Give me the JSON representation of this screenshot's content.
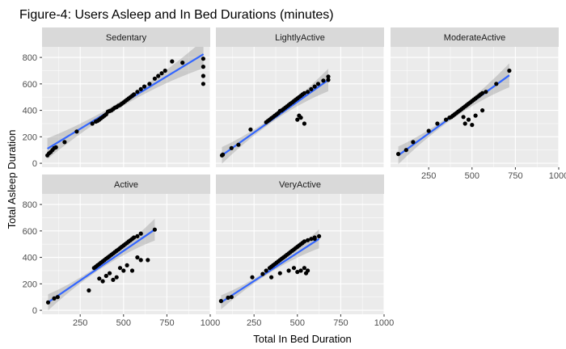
{
  "chart_data": {
    "type": "scatter",
    "title": "Figure-4: Users Asleep and In Bed Durations (minutes)",
    "xlabel": "Total In Bed Duration",
    "ylabel": "Total Asleep Duration",
    "xlim": [
      30,
      1000
    ],
    "ylim": [
      -30,
      880
    ],
    "x_ticks": [
      250,
      500,
      750,
      1000
    ],
    "y_ticks": [
      0,
      200,
      400,
      600,
      800
    ],
    "grid": true,
    "smooth": "linear fit with confidence band",
    "colors": {
      "panel_bg": "#ebebeb",
      "strip_bg": "#d9d9d9",
      "grid": "#ffffff",
      "points": "#000000",
      "fit_line": "#3366ff",
      "band": "#999999"
    },
    "panels": [
      {
        "name": "Sedentary",
        "fit": {
          "x": [
            61,
            961
          ],
          "y": [
            110,
            825
          ]
        },
        "points": [
          [
            61,
            60
          ],
          [
            70,
            75
          ],
          [
            80,
            85
          ],
          [
            90,
            100
          ],
          [
            100,
            115
          ],
          [
            110,
            120
          ],
          [
            160,
            160
          ],
          [
            230,
            240
          ],
          [
            320,
            300
          ],
          [
            340,
            315
          ],
          [
            350,
            320
          ],
          [
            360,
            330
          ],
          [
            370,
            340
          ],
          [
            380,
            350
          ],
          [
            390,
            360
          ],
          [
            400,
            370
          ],
          [
            410,
            390
          ],
          [
            420,
            395
          ],
          [
            430,
            400
          ],
          [
            440,
            410
          ],
          [
            450,
            420
          ],
          [
            460,
            425
          ],
          [
            470,
            435
          ],
          [
            480,
            440
          ],
          [
            490,
            450
          ],
          [
            500,
            460
          ],
          [
            510,
            470
          ],
          [
            520,
            480
          ],
          [
            530,
            490
          ],
          [
            540,
            500
          ],
          [
            550,
            510
          ],
          [
            560,
            520
          ],
          [
            580,
            540
          ],
          [
            600,
            560
          ],
          [
            620,
            580
          ],
          [
            650,
            600
          ],
          [
            680,
            640
          ],
          [
            700,
            660
          ],
          [
            720,
            680
          ],
          [
            740,
            700
          ],
          [
            780,
            770
          ],
          [
            840,
            760
          ],
          [
            960,
            790
          ],
          [
            960,
            730
          ],
          [
            960,
            660
          ],
          [
            960,
            600
          ]
        ]
      },
      {
        "name": "LightlyActive",
        "fit": {
          "x": [
            65,
            678
          ],
          "y": [
            60,
            630
          ]
        },
        "points": [
          [
            65,
            60
          ],
          [
            70,
            65
          ],
          [
            120,
            115
          ],
          [
            160,
            140
          ],
          [
            230,
            255
          ],
          [
            320,
            310
          ],
          [
            330,
            320
          ],
          [
            340,
            330
          ],
          [
            350,
            340
          ],
          [
            360,
            350
          ],
          [
            370,
            360
          ],
          [
            380,
            370
          ],
          [
            390,
            380
          ],
          [
            400,
            395
          ],
          [
            410,
            400
          ],
          [
            420,
            410
          ],
          [
            430,
            420
          ],
          [
            440,
            430
          ],
          [
            450,
            440
          ],
          [
            460,
            450
          ],
          [
            470,
            460
          ],
          [
            480,
            470
          ],
          [
            490,
            480
          ],
          [
            500,
            490
          ],
          [
            510,
            500
          ],
          [
            520,
            510
          ],
          [
            530,
            520
          ],
          [
            540,
            530
          ],
          [
            560,
            540
          ],
          [
            580,
            560
          ],
          [
            600,
            580
          ],
          [
            620,
            600
          ],
          [
            650,
            625
          ],
          [
            678,
            630
          ],
          [
            678,
            655
          ],
          [
            500,
            330
          ],
          [
            510,
            360
          ],
          [
            520,
            345
          ],
          [
            540,
            300
          ]
        ]
      },
      {
        "name": "ModerateActive",
        "fit": {
          "x": [
            75,
            715
          ],
          "y": [
            60,
            665
          ]
        },
        "points": [
          [
            75,
            70
          ],
          [
            120,
            100
          ],
          [
            160,
            160
          ],
          [
            250,
            245
          ],
          [
            300,
            300
          ],
          [
            350,
            330
          ],
          [
            370,
            345
          ],
          [
            380,
            350
          ],
          [
            390,
            360
          ],
          [
            400,
            370
          ],
          [
            410,
            380
          ],
          [
            420,
            390
          ],
          [
            430,
            400
          ],
          [
            440,
            410
          ],
          [
            450,
            420
          ],
          [
            460,
            430
          ],
          [
            470,
            440
          ],
          [
            480,
            450
          ],
          [
            490,
            460
          ],
          [
            500,
            470
          ],
          [
            510,
            480
          ],
          [
            520,
            490
          ],
          [
            530,
            500
          ],
          [
            540,
            510
          ],
          [
            550,
            520
          ],
          [
            560,
            530
          ],
          [
            580,
            540
          ],
          [
            640,
            600
          ],
          [
            715,
            700
          ],
          [
            460,
            300
          ],
          [
            480,
            330
          ],
          [
            500,
            290
          ],
          [
            520,
            360
          ],
          [
            560,
            400
          ],
          [
            450,
            350
          ]
        ]
      },
      {
        "name": "Active",
        "fit": {
          "x": [
            65,
            680
          ],
          "y": [
            60,
            610
          ]
        },
        "points": [
          [
            65,
            60
          ],
          [
            100,
            90
          ],
          [
            120,
            100
          ],
          [
            300,
            150
          ],
          [
            330,
            320
          ],
          [
            340,
            330
          ],
          [
            350,
            340
          ],
          [
            360,
            350
          ],
          [
            370,
            360
          ],
          [
            380,
            370
          ],
          [
            390,
            380
          ],
          [
            400,
            390
          ],
          [
            410,
            400
          ],
          [
            420,
            410
          ],
          [
            430,
            420
          ],
          [
            440,
            430
          ],
          [
            450,
            440
          ],
          [
            460,
            450
          ],
          [
            470,
            460
          ],
          [
            480,
            470
          ],
          [
            490,
            480
          ],
          [
            500,
            490
          ],
          [
            510,
            500
          ],
          [
            520,
            510
          ],
          [
            530,
            520
          ],
          [
            540,
            530
          ],
          [
            550,
            540
          ],
          [
            560,
            550
          ],
          [
            580,
            560
          ],
          [
            600,
            580
          ],
          [
            680,
            610
          ],
          [
            360,
            240
          ],
          [
            380,
            220
          ],
          [
            400,
            260
          ],
          [
            420,
            280
          ],
          [
            440,
            230
          ],
          [
            460,
            250
          ],
          [
            480,
            320
          ],
          [
            500,
            300
          ],
          [
            520,
            340
          ],
          [
            550,
            300
          ],
          [
            580,
            400
          ],
          [
            600,
            380
          ],
          [
            640,
            380
          ]
        ]
      },
      {
        "name": "VeryActive",
        "fit": {
          "x": [
            60,
            625
          ],
          "y": [
            60,
            540
          ]
        },
        "points": [
          [
            60,
            70
          ],
          [
            100,
            95
          ],
          [
            120,
            100
          ],
          [
            240,
            250
          ],
          [
            300,
            275
          ],
          [
            320,
            300
          ],
          [
            340,
            320
          ],
          [
            350,
            330
          ],
          [
            360,
            340
          ],
          [
            370,
            350
          ],
          [
            380,
            360
          ],
          [
            390,
            370
          ],
          [
            400,
            380
          ],
          [
            410,
            390
          ],
          [
            420,
            400
          ],
          [
            430,
            410
          ],
          [
            440,
            420
          ],
          [
            450,
            430
          ],
          [
            460,
            440
          ],
          [
            470,
            450
          ],
          [
            480,
            460
          ],
          [
            490,
            470
          ],
          [
            500,
            480
          ],
          [
            510,
            490
          ],
          [
            520,
            500
          ],
          [
            530,
            510
          ],
          [
            540,
            520
          ],
          [
            560,
            530
          ],
          [
            580,
            540
          ],
          [
            600,
            550
          ],
          [
            625,
            560
          ],
          [
            350,
            250
          ],
          [
            400,
            280
          ],
          [
            450,
            300
          ],
          [
            480,
            320
          ],
          [
            500,
            290
          ],
          [
            520,
            300
          ],
          [
            540,
            320
          ],
          [
            550,
            280
          ],
          [
            560,
            300
          ],
          [
            600,
            540
          ]
        ]
      }
    ]
  }
}
